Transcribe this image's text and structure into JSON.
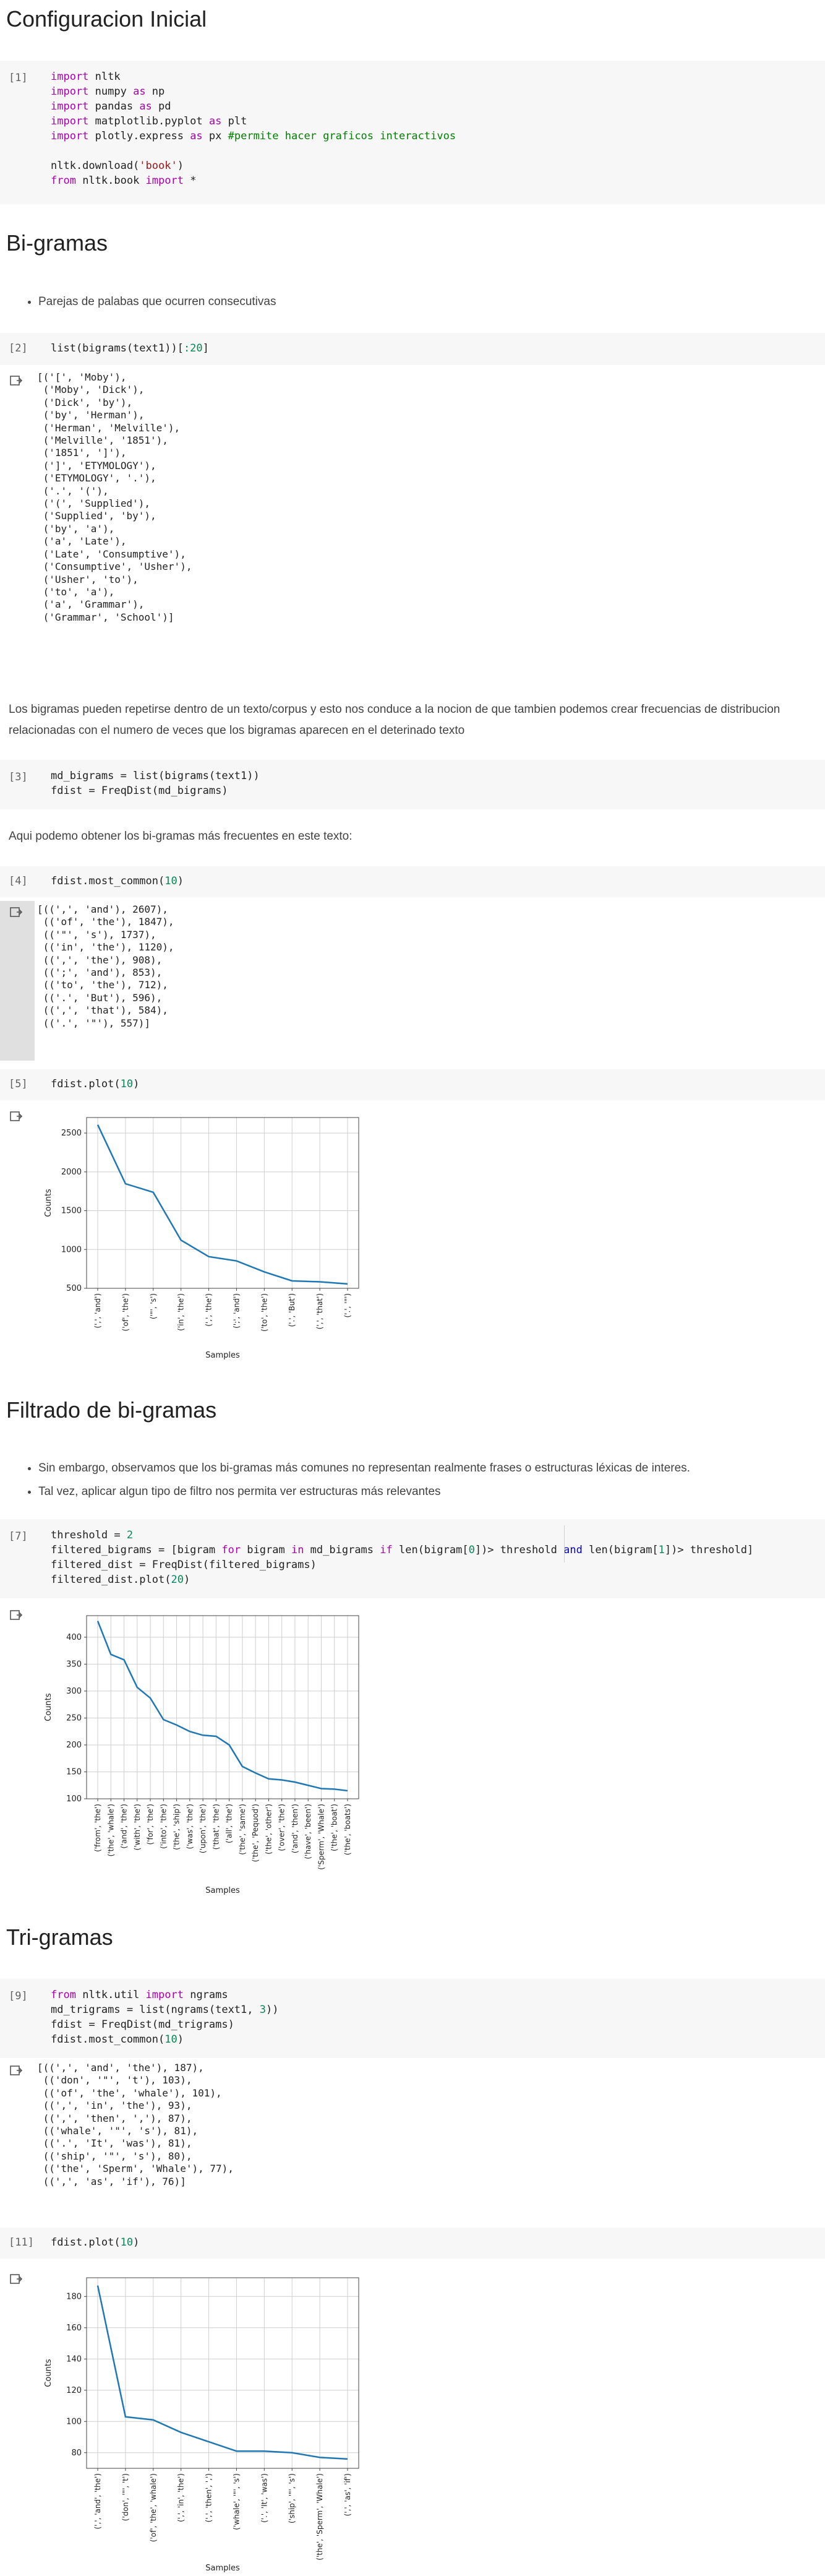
{
  "section1": {
    "title": "Configuracion Inicial",
    "prompt": "[1]",
    "code": [
      [
        [
          "kw",
          "import"
        ],
        [
          "t",
          " nltk"
        ]
      ],
      [
        [
          "kw",
          "import"
        ],
        [
          "t",
          " numpy "
        ],
        [
          "kw",
          "as"
        ],
        [
          "t",
          " np"
        ]
      ],
      [
        [
          "kw",
          "import"
        ],
        [
          "t",
          " pandas "
        ],
        [
          "kw",
          "as"
        ],
        [
          "t",
          " pd"
        ]
      ],
      [
        [
          "kw",
          "import"
        ],
        [
          "t",
          " matplotlib.pyplot "
        ],
        [
          "kw",
          "as"
        ],
        [
          "t",
          " plt"
        ]
      ],
      [
        [
          "kw",
          "import"
        ],
        [
          "t",
          " plotly.express "
        ],
        [
          "kw",
          "as"
        ],
        [
          "t",
          " px "
        ],
        [
          "cm",
          "#permite hacer graficos interactivos"
        ]
      ],
      [
        [
          "t",
          ""
        ]
      ],
      [
        [
          "t",
          "nltk.download("
        ],
        [
          "str",
          "'book'"
        ],
        [
          "t",
          ")"
        ]
      ],
      [
        [
          "kw",
          "from"
        ],
        [
          "t",
          " nltk.book "
        ],
        [
          "kw",
          "import"
        ],
        [
          "t",
          " *"
        ]
      ]
    ]
  },
  "section2": {
    "title": "Bi-gramas",
    "bullet": "Parejas de palabas que ocurren consecutivas",
    "cell2": {
      "prompt": "[2]",
      "code": [
        [
          [
            "t",
            "list(bigrams(text1))["
          ],
          [
            "num",
            ":20"
          ],
          [
            "t",
            "]"
          ]
        ]
      ],
      "output": "[('[', 'Moby'),\n ('Moby', 'Dick'),\n ('Dick', 'by'),\n ('by', 'Herman'),\n ('Herman', 'Melville'),\n ('Melville', '1851'),\n ('1851', ']'),\n (']', 'ETYMOLOGY'),\n ('ETYMOLOGY', '.'),\n ('.', '('),\n ('(', 'Supplied'),\n ('Supplied', 'by'),\n ('by', 'a'),\n ('a', 'Late'),\n ('Late', 'Consumptive'),\n ('Consumptive', 'Usher'),\n ('Usher', 'to'),\n ('to', 'a'),\n ('a', 'Grammar'),\n ('Grammar', 'School')]"
    },
    "paragraph1": "Los bigramas pueden repetirse dentro de un texto/corpus y esto nos conduce a la nocion de que tambien podemos crear frecuencias de distribucion relacionadas con el numero de veces que los bigramas aparecen en el deterinado texto",
    "cell3": {
      "prompt": "[3]",
      "code": [
        [
          [
            "t",
            "md_bigrams = list(bigrams(text1))"
          ]
        ],
        [
          [
            "t",
            "fdist = FreqDist(md_bigrams)"
          ]
        ]
      ]
    },
    "paragraph2": "Aqui podemo obtener los bi-gramas más frecuentes en este texto:",
    "cell4": {
      "prompt": "[4]",
      "code": [
        [
          [
            "t",
            "fdist.most_common("
          ],
          [
            "num",
            "10"
          ],
          [
            "t",
            ")"
          ]
        ]
      ],
      "output": "[((',', 'and'), 2607),\n (('of', 'the'), 1847),\n (('\"', 's'), 1737),\n (('in', 'the'), 1120),\n ((',', 'the'), 908),\n ((';', 'and'), 853),\n (('to', 'the'), 712),\n (('.', 'But'), 596),\n ((',', 'that'), 584),\n (('.', '\"'), 557)]"
    },
    "cell5": {
      "prompt": "[5]",
      "code": [
        [
          [
            "t",
            "fdist.plot("
          ],
          [
            "num",
            "10"
          ],
          [
            "t",
            ")"
          ]
        ]
      ]
    }
  },
  "section3": {
    "title": "Filtrado de bi-gramas",
    "bullets": [
      "Sin embargo, observamos que los bi-gramas más comunes no representan realmente frases o estructuras léxicas de interes.",
      "Tal vez, aplicar algun tipo de filtro nos permita ver estructuras más relevantes"
    ],
    "cell7": {
      "prompt": "[7]",
      "code": [
        [
          [
            "t",
            "threshold = "
          ],
          [
            "num",
            "2"
          ]
        ],
        [
          [
            "t",
            "filtered_bigrams = [bigram "
          ],
          [
            "kw",
            "for"
          ],
          [
            "t",
            " bigram "
          ],
          [
            "kw",
            "in"
          ],
          [
            "t",
            " md_bigrams "
          ],
          [
            "kw",
            "if"
          ],
          [
            "t",
            " len(bigram["
          ],
          [
            "num",
            "0"
          ],
          [
            "t",
            "])> threshold "
          ],
          [
            "kwb",
            "and"
          ],
          [
            "t",
            " len(bigram["
          ],
          [
            "num",
            "1"
          ],
          [
            "t",
            "])> threshold]"
          ]
        ],
        [
          [
            "t",
            "filtered_dist = FreqDist(filtered_bigrams)"
          ]
        ],
        [
          [
            "t",
            "filtered_dist.plot("
          ],
          [
            "num",
            "20"
          ],
          [
            "t",
            ")"
          ]
        ]
      ]
    }
  },
  "section4": {
    "title": "Tri-gramas",
    "cell9": {
      "prompt": "[9]",
      "code": [
        [
          [
            "kw",
            "from"
          ],
          [
            "t",
            " nltk.util "
          ],
          [
            "kw",
            "import"
          ],
          [
            "t",
            " ngrams"
          ]
        ],
        [
          [
            "t",
            "md_trigrams = list(ngrams(text1, "
          ],
          [
            "num",
            "3"
          ],
          [
            "t",
            "))"
          ]
        ],
        [
          [
            "t",
            "fdist = FreqDist(md_trigrams)"
          ]
        ],
        [
          [
            "t",
            "fdist.most_common("
          ],
          [
            "num",
            "10"
          ],
          [
            "t",
            ")"
          ]
        ]
      ],
      "output": "[((',', 'and', 'the'), 187),\n (('don', '\"', 't'), 103),\n (('of', 'the', 'whale'), 101),\n ((',', 'in', 'the'), 93),\n ((',', 'then', ','), 87),\n (('whale', '\"', 's'), 81),\n (('.', 'It', 'was'), 81),\n (('ship', '\"', 's'), 80),\n (('the', 'Sperm', 'Whale'), 77),\n ((',', 'as', 'if'), 76)]"
    },
    "cell11": {
      "prompt": "[11]",
      "code": [
        [
          [
            "t",
            "fdist.plot("
          ],
          [
            "num",
            "10"
          ],
          [
            "t",
            ")"
          ]
        ]
      ]
    }
  },
  "chart_data": [
    {
      "type": "line",
      "categories": [
        "(',', 'and')",
        "('of', 'the')",
        "('\"', 's')",
        "('in', 'the')",
        "(',', 'the')",
        "(';', 'and')",
        "('to', 'the')",
        "('.', 'But')",
        "(',', 'that')",
        "('.', '\"')"
      ],
      "values": [
        2607,
        1847,
        1737,
        1120,
        908,
        853,
        712,
        596,
        584,
        557
      ],
      "xlabel": "Samples",
      "ylabel": "Counts",
      "ylim": [
        500,
        2700
      ],
      "yticks": [
        500,
        1000,
        1500,
        2000,
        2500
      ],
      "grid": true,
      "color": "#1f77b4"
    },
    {
      "type": "line",
      "categories": [
        "('from', 'the')",
        "('the', 'whale')",
        "('and', 'the')",
        "('with', 'the')",
        "('for', 'the')",
        "('into', 'the')",
        "('the', 'ship')",
        "('was', 'the')",
        "('upon', 'the')",
        "('that', 'the')",
        "('all', 'the')",
        "('the', 'same')",
        "('the', 'Pequod')",
        "('the', 'other')",
        "('over', 'the')",
        "('and', 'then')",
        "('have', 'been')",
        "('Sperm', 'Whale')",
        "('the', 'boat')",
        "('the', 'boats')"
      ],
      "values": [
        430,
        368,
        358,
        307,
        287,
        247,
        237,
        225,
        218,
        216,
        200,
        160,
        148,
        137,
        135,
        131,
        125,
        119,
        118,
        115
      ],
      "xlabel": "Samples",
      "ylabel": "Counts",
      "ylim": [
        100,
        440
      ],
      "yticks": [
        100,
        150,
        200,
        250,
        300,
        350,
        400
      ],
      "grid": true,
      "color": "#1f77b4"
    },
    {
      "type": "line",
      "categories": [
        "(',', 'and', 'the')",
        "('don', '\"', 't')",
        "('of', 'the', 'whale')",
        "(',', 'in', 'the')",
        "(',', 'then', ',')",
        "('whale', '\"', 's')",
        "('.', 'It', 'was')",
        "('ship', '\"', 's')",
        "('the', 'Sperm', 'Whale')",
        "(',', 'as', 'if')"
      ],
      "values": [
        187,
        103,
        101,
        93,
        87,
        81,
        81,
        80,
        77,
        76
      ],
      "xlabel": "Samples",
      "ylabel": "Counts",
      "ylim": [
        70,
        192
      ],
      "yticks": [
        80,
        100,
        120,
        140,
        160,
        180
      ],
      "grid": true,
      "color": "#1f77b4"
    }
  ]
}
